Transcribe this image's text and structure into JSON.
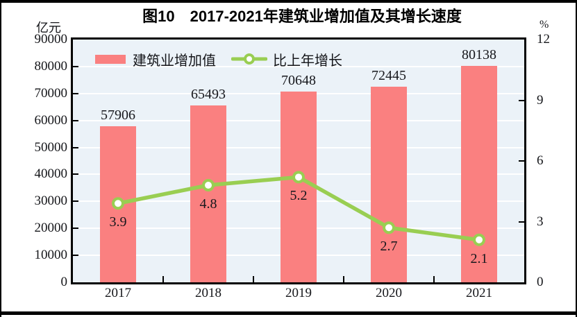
{
  "figure": {
    "title": "图10　2017-2021年建筑业增加值及其增长速度",
    "unit_left": "亿元",
    "unit_right": "%"
  },
  "legend": {
    "bar_label": "建筑业增加值",
    "line_label": "比上年增长"
  },
  "chart_data": {
    "type": "combo-bar-line",
    "title": "图10　2017-2021年建筑业增加值及其增长速度",
    "categories": [
      "2017",
      "2018",
      "2019",
      "2020",
      "2021"
    ],
    "series": [
      {
        "name": "建筑业增加值",
        "type": "bar",
        "axis": "left",
        "color": "#FA8080",
        "values": [
          57906,
          65493,
          70648,
          72445,
          80138
        ],
        "labels": [
          "57906",
          "65493",
          "70648",
          "72445",
          "80138"
        ]
      },
      {
        "name": "比上年增长",
        "type": "line",
        "axis": "right",
        "color": "#99CE52",
        "marker_fill": "#FFFFFF",
        "values": [
          3.9,
          4.8,
          5.2,
          2.7,
          2.1
        ],
        "labels": [
          "3.9",
          "4.8",
          "5.2",
          "2.7",
          "2.1"
        ]
      }
    ],
    "left_axis": {
      "label": "亿元",
      "range": [
        0,
        90000
      ],
      "ticks": [
        0,
        10000,
        20000,
        30000,
        40000,
        50000,
        60000,
        70000,
        80000,
        90000
      ]
    },
    "right_axis": {
      "label": "%",
      "range": [
        0,
        12
      ],
      "ticks": [
        0,
        3,
        6,
        9,
        12
      ]
    },
    "grid": true,
    "legend_position": "top-left",
    "plot_bg": "#EBF2F8",
    "grid_color": "#FFFFFF"
  }
}
